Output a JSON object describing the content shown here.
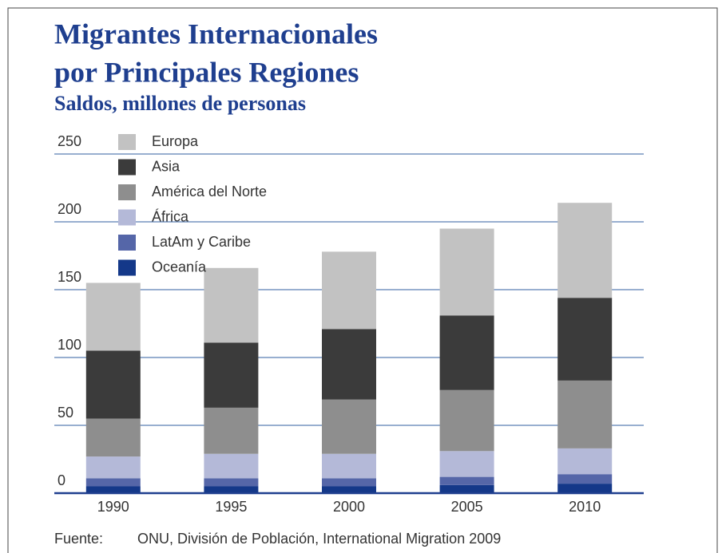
{
  "chart_data": {
    "type": "stacked_bar",
    "title": "Migrantes Internacionales",
    "title_line2": "por Principales Regiones",
    "subtitle": "Saldos, millones de personas",
    "categories": [
      "1990",
      "1995",
      "2000",
      "2005",
      "2010"
    ],
    "series": [
      {
        "name": "Europa",
        "color": "#c2c2c2",
        "values": [
          50,
          55,
          57,
          64,
          70
        ]
      },
      {
        "name": "Asia",
        "color": "#3b3b3b",
        "values": [
          50,
          48,
          52,
          55,
          61
        ]
      },
      {
        "name": "América del Norte",
        "color": "#8e8e8e",
        "values": [
          28,
          34,
          40,
          45,
          50
        ]
      },
      {
        "name": "África",
        "color": "#b4b9d8",
        "values": [
          16,
          18,
          18,
          19,
          19
        ]
      },
      {
        "name": "LatAm y Caribe",
        "color": "#5566a8",
        "values": [
          6,
          6,
          6,
          6,
          7
        ]
      },
      {
        "name": "Oceanía",
        "color": "#143889",
        "values": [
          5,
          5,
          5,
          6,
          7
        ]
      }
    ],
    "ylim": [
      0,
      250
    ],
    "yticks": [
      0,
      50,
      100,
      150,
      200,
      250
    ],
    "grid": true,
    "source_label": "Fuente:",
    "source": "ONU, División de Población, International Migration 2009"
  }
}
